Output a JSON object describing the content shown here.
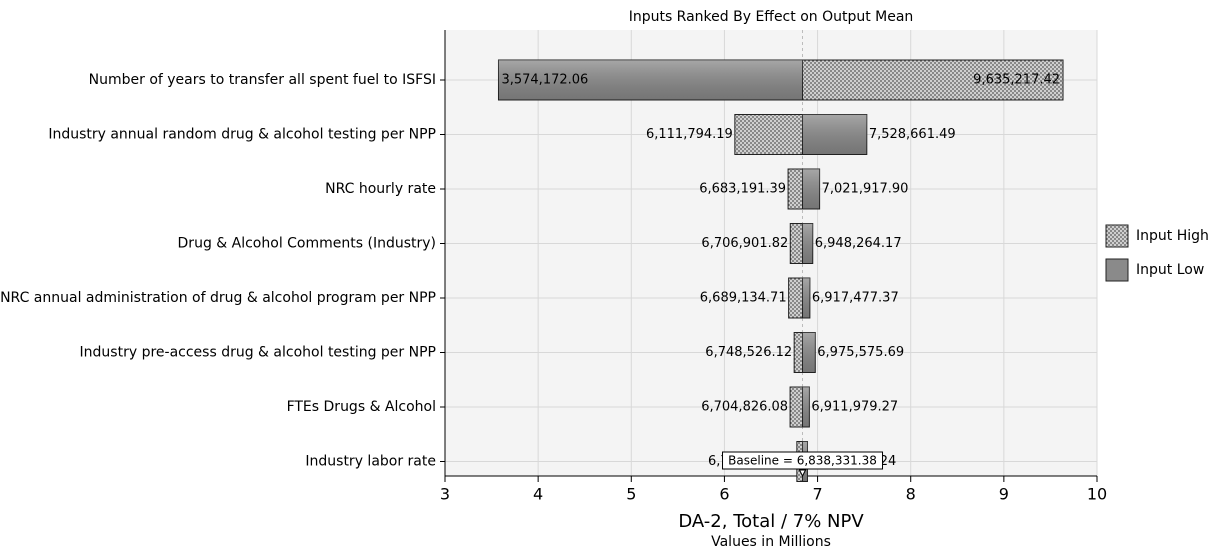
{
  "chart_data": {
    "type": "tornado",
    "title": "Inputs Ranked By Effect on Output Mean",
    "xlabel": "DA-2, Total / 7% NPV",
    "subtitle": "Values in Millions",
    "categories": [
      "Number of years to transfer all spent fuel to ISFSI",
      "Industry annual random drug & alcohol testing per NPP",
      "NRC hourly rate",
      "Drug & Alcohol Comments (Industry)",
      "NRC annual administration of drug & alcohol program per NPP",
      "Industry pre-access drug & alcohol testing per NPP",
      "FTEs Drugs & Alcohol",
      "Industry labor rate"
    ],
    "series": [
      {
        "name": "Input High",
        "color": "#cfcfcf",
        "pattern": "dotted",
        "values": [
          9.63521742,
          6.11179419,
          6.68319139,
          6.70690182,
          6.68913471,
          6.74852612,
          6.70482608,
          6.77744547
        ],
        "value_labels": [
          "9,635,217.42",
          "6,111,794.19",
          "6,683,191.39",
          "6,706,901.82",
          "6,689,134.71",
          "6,748,526.12",
          "6,704,826.08",
          "6,777,445.47"
        ]
      },
      {
        "name": "Input Low",
        "color": "#8a8a8a",
        "pattern": "solid",
        "values": [
          3.57417206,
          7.52866149,
          7.0219179,
          6.94826417,
          6.91747737,
          6.97557569,
          6.91197927,
          6.89155024
        ],
        "value_labels": [
          "3,574,172.06",
          "7,528,661.49",
          "7,021,917.90",
          "6,948,264.17",
          "6,917,477.37",
          "6,975,575.69",
          "6,911,979.27",
          "6,891,550.24"
        ]
      }
    ],
    "baseline": {
      "value": 6.83833138,
      "label": "Baseline = 6,838,331.38"
    },
    "xlim": [
      3,
      10
    ],
    "xticks": [
      3,
      4,
      5,
      6,
      7,
      8,
      9,
      10
    ],
    "grid": true,
    "legend": "right"
  }
}
